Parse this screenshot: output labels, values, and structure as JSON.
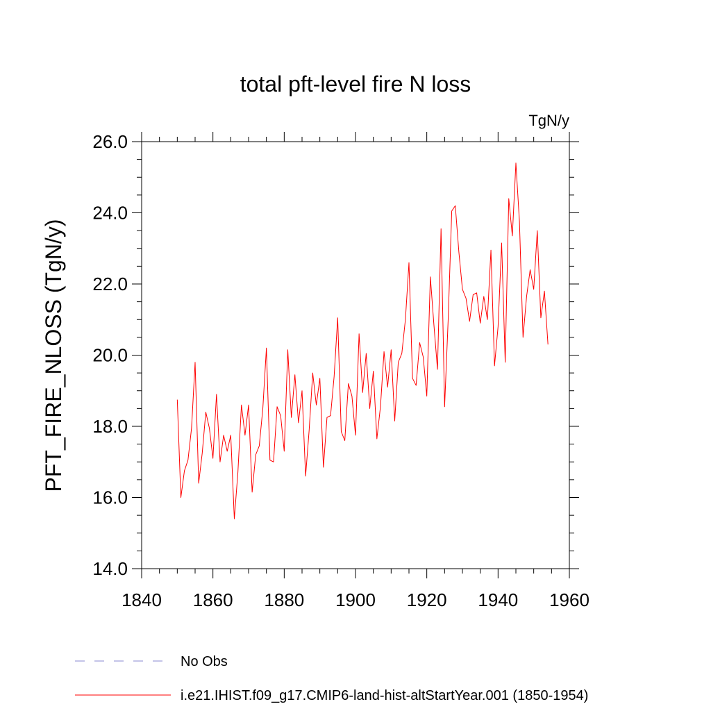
{
  "chart_data": {
    "type": "line",
    "title": "total pft-level fire N loss",
    "units": "TgN/y",
    "ylabel": "PFT_FIRE_NLOSS  (TgN/y)",
    "xlabel": "",
    "xlim": [
      1840,
      1960
    ],
    "ylim": [
      14.0,
      26.0
    ],
    "x_ticks": [
      1840,
      1860,
      1880,
      1900,
      1920,
      1940,
      1960
    ],
    "x_tick_labels": [
      "1840",
      "1860",
      "1880",
      "1900",
      "1920",
      "1940",
      "1960"
    ],
    "y_ticks": [
      14,
      16,
      18,
      20,
      22,
      24,
      26
    ],
    "y_tick_labels": [
      "14.0",
      "16.0",
      "18.0",
      "20.0",
      "22.0",
      "24.0",
      "26.0"
    ],
    "grid": false,
    "legend_placement": "bottom",
    "legend": [
      {
        "label": "No Obs",
        "color": "#8a8ad0",
        "style": "dashed"
      },
      {
        "label": "i.e21.IHIST.f09_g17.CMIP6-land-hist-altStartYear.001 (1850-1954)",
        "color": "#ff0000",
        "style": "solid"
      }
    ],
    "series": [
      {
        "name": "i.e21.IHIST.f09_g17.CMIP6-land-hist-altStartYear.001 (1850-1954)",
        "color": "#ff0000",
        "x": [
          1850,
          1851,
          1852,
          1853,
          1854,
          1855,
          1856,
          1857,
          1858,
          1859,
          1860,
          1861,
          1862,
          1863,
          1864,
          1865,
          1866,
          1867,
          1868,
          1869,
          1870,
          1871,
          1872,
          1873,
          1874,
          1875,
          1876,
          1877,
          1878,
          1879,
          1880,
          1881,
          1882,
          1883,
          1884,
          1885,
          1886,
          1887,
          1888,
          1889,
          1890,
          1891,
          1892,
          1893,
          1894,
          1895,
          1896,
          1897,
          1898,
          1899,
          1900,
          1901,
          1902,
          1903,
          1904,
          1905,
          1906,
          1907,
          1908,
          1909,
          1910,
          1911,
          1912,
          1913,
          1914,
          1915,
          1916,
          1917,
          1918,
          1919,
          1920,
          1921,
          1922,
          1923,
          1924,
          1925,
          1926,
          1927,
          1928,
          1929,
          1930,
          1931,
          1932,
          1933,
          1934,
          1935,
          1936,
          1937,
          1938,
          1939,
          1940,
          1941,
          1942,
          1943,
          1944,
          1945,
          1946,
          1947,
          1948,
          1949,
          1950,
          1951,
          1952,
          1953,
          1954
        ],
        "values": [
          18.75,
          16.0,
          16.75,
          17.05,
          17.95,
          19.8,
          16.4,
          17.25,
          18.4,
          17.95,
          17.1,
          18.9,
          17.0,
          17.75,
          17.3,
          17.75,
          15.4,
          16.7,
          18.6,
          17.75,
          18.6,
          16.15,
          17.2,
          17.45,
          18.5,
          20.2,
          17.05,
          17.0,
          18.55,
          18.3,
          17.3,
          20.15,
          18.25,
          19.45,
          18.1,
          19.0,
          16.6,
          17.9,
          19.5,
          18.6,
          19.35,
          16.85,
          18.25,
          18.3,
          19.4,
          21.05,
          17.85,
          17.6,
          19.2,
          18.85,
          17.75,
          20.6,
          18.95,
          20.05,
          18.5,
          19.55,
          17.65,
          18.55,
          20.1,
          19.1,
          20.15,
          18.15,
          19.8,
          20.05,
          21.0,
          22.6,
          19.35,
          19.15,
          20.35,
          19.95,
          18.85,
          22.2,
          20.85,
          19.6,
          23.55,
          18.55,
          21.0,
          24.05,
          24.2,
          22.9,
          21.85,
          21.6,
          20.95,
          21.7,
          21.75,
          20.9,
          21.65,
          21.0,
          22.95,
          19.7,
          20.8,
          23.15,
          19.8,
          24.4,
          23.35,
          25.4,
          23.75,
          20.5,
          21.65,
          22.4,
          21.85,
          23.5,
          21.05,
          21.8,
          20.3
        ]
      }
    ]
  }
}
